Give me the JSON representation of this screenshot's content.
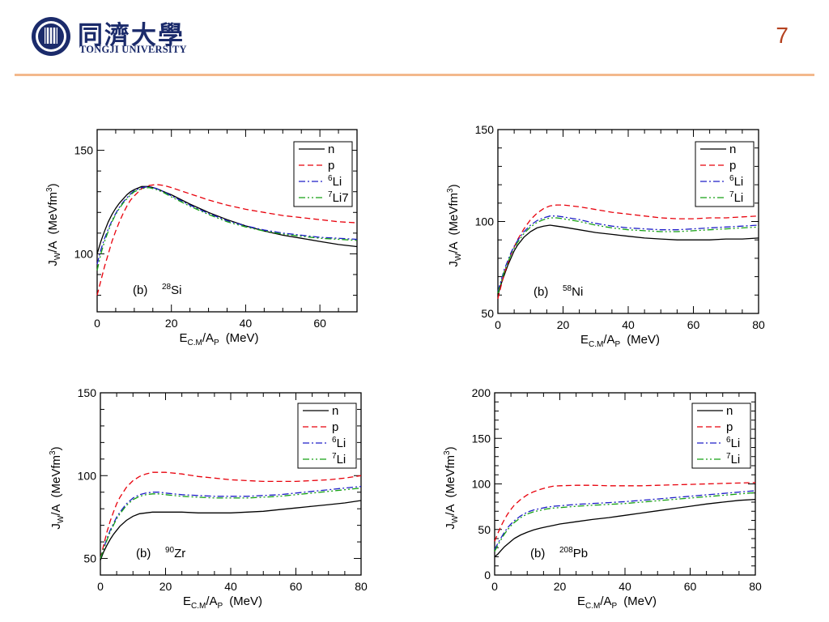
{
  "header": {
    "logo_cn": "同濟大學",
    "logo_en": "TONGJI UNIVERSITY",
    "page_number": "7"
  },
  "colors": {
    "n": "#000000",
    "p": "#e8000b",
    "li6": "#1f1fc8",
    "li7": "#16a014",
    "accent_rule": "#f3b98c",
    "brand": "#1b2b6b"
  },
  "chart_data": [
    {
      "type": "line",
      "panel_label": "(b)",
      "nucleus_mass": "28",
      "nucleus_symbol": "Si",
      "xlabel": {
        "main": "E",
        "sub1": "C.M",
        "mid": "/A",
        "sub2": "P",
        "unit": "(MeV)"
      },
      "ylabel": {
        "main": "J",
        "sub": "W",
        "mid": "/A",
        "unit": "(MeVfm",
        "sup": "3",
        "close": ")"
      },
      "xlim": [
        0,
        70
      ],
      "ylim": [
        72,
        160
      ],
      "xticks": [
        0,
        20,
        40,
        60
      ],
      "yticks": [
        100,
        150
      ],
      "legend": [
        "n",
        "p",
        "6Li",
        "7Li7"
      ],
      "series": [
        {
          "name": "n",
          "x": [
            0,
            1,
            2,
            3,
            4,
            5,
            6,
            7,
            8,
            9,
            10,
            12,
            14,
            16,
            18,
            20,
            25,
            30,
            35,
            40,
            45,
            50,
            55,
            60,
            65,
            70
          ],
          "y": [
            100,
            106,
            111,
            115.5,
            119,
            122,
            124.5,
            126.5,
            128.5,
            130,
            131,
            132.5,
            132.5,
            131.5,
            130,
            128.5,
            124,
            120,
            116.5,
            113.5,
            111,
            109,
            107.5,
            106,
            104.5,
            103.5
          ]
        },
        {
          "name": "p",
          "x": [
            0,
            1,
            2,
            3,
            4,
            5,
            6,
            7,
            8,
            9,
            10,
            12,
            14,
            16,
            18,
            20,
            25,
            30,
            35,
            40,
            45,
            50,
            55,
            60,
            65,
            70
          ],
          "y": [
            80,
            87,
            94,
            100,
            106,
            111,
            115.5,
            119.5,
            123,
            126,
            128,
            131.5,
            133,
            133.5,
            133,
            132,
            129,
            126,
            123.5,
            121.5,
            120,
            118.5,
            117.5,
            116.5,
            115.5,
            115
          ]
        },
        {
          "name": "6Li",
          "x": [
            0,
            1,
            2,
            3,
            4,
            5,
            6,
            7,
            8,
            9,
            10,
            12,
            14,
            16,
            18,
            20,
            25,
            30,
            35,
            40,
            45,
            50,
            55,
            60,
            65,
            70
          ],
          "y": [
            95,
            102,
            107.5,
            112,
            116,
            119.5,
            122.5,
            125,
            127,
            129,
            130.5,
            132,
            132.5,
            131.5,
            130,
            128,
            123.5,
            119.5,
            116,
            113.5,
            111.5,
            110,
            109,
            108,
            107.5,
            107
          ]
        },
        {
          "name": "7Li7",
          "x": [
            0,
            1,
            2,
            3,
            4,
            5,
            6,
            7,
            8,
            9,
            10,
            12,
            14,
            16,
            18,
            20,
            25,
            30,
            35,
            40,
            45,
            50,
            55,
            60,
            65,
            70
          ],
          "y": [
            92,
            100,
            106,
            111,
            115.5,
            119,
            122,
            124.5,
            126.5,
            128.5,
            130,
            131.5,
            132,
            131,
            129.5,
            127.5,
            123,
            119,
            115.5,
            113,
            111,
            109.5,
            108.5,
            107.5,
            107,
            106.5
          ]
        }
      ]
    },
    {
      "type": "line",
      "panel_label": "(b)",
      "nucleus_mass": "58",
      "nucleus_symbol": "Ni",
      "xlabel": {
        "main": "E",
        "sub1": "C.M",
        "mid": "/A",
        "sub2": "P",
        "unit": "(MeV)"
      },
      "ylabel": {
        "main": "J",
        "sub": "W",
        "mid": "/A",
        "unit": "(MeVfm",
        "sup": "3",
        "close": ")"
      },
      "xlim": [
        0,
        80
      ],
      "ylim": [
        50,
        150
      ],
      "xticks": [
        0,
        20,
        40,
        60,
        80
      ],
      "yticks": [
        50,
        100,
        150
      ],
      "legend": [
        "n",
        "p",
        "6Li",
        "7Li"
      ],
      "series": [
        {
          "name": "n",
          "x": [
            0,
            1,
            2,
            3,
            4,
            5,
            6,
            8,
            10,
            12,
            14,
            16,
            18,
            20,
            25,
            30,
            35,
            40,
            45,
            50,
            55,
            60,
            65,
            70,
            75,
            80
          ],
          "y": [
            60,
            66,
            71,
            76,
            80,
            84,
            87,
            91.5,
            94.5,
            96.5,
            97.5,
            98,
            97.5,
            97,
            95.5,
            94,
            93,
            92,
            91,
            90.5,
            90,
            90,
            90,
            90.5,
            90.5,
            91
          ]
        },
        {
          "name": "p",
          "x": [
            0,
            1,
            2,
            3,
            4,
            5,
            6,
            8,
            10,
            12,
            14,
            16,
            18,
            20,
            25,
            30,
            35,
            40,
            45,
            50,
            55,
            60,
            65,
            70,
            75,
            80
          ],
          "y": [
            58,
            65,
            72,
            77,
            82,
            86,
            90,
            96,
            101,
            104.5,
            107,
            108.5,
            109,
            109,
            108,
            106.5,
            105,
            104,
            103,
            102,
            101.5,
            101.5,
            102,
            102,
            102.5,
            103
          ]
        },
        {
          "name": "6Li",
          "x": [
            0,
            1,
            2,
            3,
            4,
            5,
            6,
            8,
            10,
            12,
            14,
            16,
            18,
            20,
            25,
            30,
            35,
            40,
            45,
            50,
            55,
            60,
            65,
            70,
            75,
            80
          ],
          "y": [
            62,
            68,
            74,
            78.5,
            83,
            86.5,
            89.5,
            94.5,
            98,
            100.5,
            102,
            103,
            103,
            102.5,
            101,
            99,
            97.5,
            96.5,
            96,
            95.5,
            95.5,
            96,
            96.5,
            97,
            97.5,
            98
          ]
        },
        {
          "name": "7Li",
          "x": [
            0,
            1,
            2,
            3,
            4,
            5,
            6,
            8,
            10,
            12,
            14,
            16,
            18,
            20,
            25,
            30,
            35,
            40,
            45,
            50,
            55,
            60,
            65,
            70,
            75,
            80
          ],
          "y": [
            61,
            67,
            73,
            77.5,
            82,
            85.5,
            88.5,
            93.5,
            97,
            99.5,
            101,
            102,
            102,
            101.5,
            100,
            98,
            96.5,
            95.5,
            95,
            94.5,
            94.5,
            95,
            95.5,
            96,
            96.5,
            97
          ]
        }
      ]
    },
    {
      "type": "line",
      "panel_label": "(b)",
      "nucleus_mass": "90",
      "nucleus_symbol": "Zr",
      "xlabel": {
        "main": "E",
        "sub1": "C.M",
        "mid": "/A",
        "sub2": "P",
        "unit": "(MeV)"
      },
      "ylabel": {
        "main": "J",
        "sub": "W",
        "mid": "/A",
        "unit": "(MeVfm",
        "sup": "3",
        "close": ")"
      },
      "xlim": [
        0,
        80
      ],
      "ylim": [
        40,
        150
      ],
      "xticks": [
        0,
        20,
        40,
        60,
        80
      ],
      "yticks": [
        50,
        100,
        150
      ],
      "legend": [
        "n",
        "p",
        "6Li",
        "7Li"
      ],
      "series": [
        {
          "name": "n",
          "x": [
            0,
            1,
            2,
            3,
            4,
            5,
            6,
            8,
            10,
            12,
            14,
            16,
            18,
            20,
            25,
            30,
            35,
            40,
            45,
            50,
            55,
            60,
            65,
            70,
            75,
            80
          ],
          "y": [
            49,
            54,
            58,
            61.5,
            64.5,
            67,
            69.5,
            73,
            75.5,
            77,
            77.5,
            78,
            78,
            78,
            78,
            77.5,
            77.5,
            77.5,
            78,
            78.5,
            79.5,
            80.5,
            81.5,
            82.5,
            83.5,
            85
          ]
        },
        {
          "name": "p",
          "x": [
            0,
            1,
            2,
            3,
            4,
            5,
            6,
            8,
            10,
            12,
            14,
            16,
            18,
            20,
            25,
            30,
            35,
            40,
            45,
            50,
            55,
            60,
            65,
            70,
            75,
            80
          ],
          "y": [
            50,
            58,
            66,
            72.5,
            78,
            83,
            87,
            93,
            97,
            99.5,
            101,
            102,
            102,
            102,
            101,
            99.5,
            98.5,
            97.5,
            97,
            96.5,
            96.5,
            96.5,
            97,
            97.5,
            98.5,
            100
          ]
        },
        {
          "name": "6Li",
          "x": [
            0,
            1,
            2,
            3,
            4,
            5,
            6,
            8,
            10,
            12,
            14,
            16,
            18,
            20,
            25,
            30,
            35,
            40,
            45,
            50,
            55,
            60,
            65,
            70,
            75,
            80
          ],
          "y": [
            50,
            56,
            62,
            67,
            71,
            75,
            78,
            83,
            86.5,
            88.5,
            89.5,
            90,
            90,
            89.5,
            88.5,
            88,
            87.5,
            87.5,
            87.5,
            88,
            88.5,
            89.5,
            90.5,
            91.5,
            92.5,
            93.5
          ]
        },
        {
          "name": "7Li",
          "x": [
            0,
            1,
            2,
            3,
            4,
            5,
            6,
            8,
            10,
            12,
            14,
            16,
            18,
            20,
            25,
            30,
            35,
            40,
            45,
            50,
            55,
            60,
            65,
            70,
            75,
            80
          ],
          "y": [
            50,
            55.5,
            61,
            66,
            70,
            74,
            77,
            82,
            85.5,
            87.5,
            88.5,
            89,
            89,
            88.5,
            87.5,
            87,
            86.5,
            86.5,
            86.5,
            87,
            87.5,
            88.5,
            89.5,
            90.5,
            91.5,
            92.5
          ]
        }
      ]
    },
    {
      "type": "line",
      "panel_label": "(b)",
      "nucleus_mass": "208",
      "nucleus_symbol": "Pb",
      "xlabel": {
        "main": "E",
        "sub1": "C.M",
        "mid": "/A",
        "sub2": "P",
        "unit": "(MeV)"
      },
      "ylabel": {
        "main": "J",
        "sub": "W",
        "mid": "/A",
        "unit": "(MeVfm",
        "sup": "3",
        "close": ")"
      },
      "xlim": [
        0,
        80
      ],
      "ylim": [
        0,
        200
      ],
      "xticks": [
        0,
        20,
        40,
        60,
        80
      ],
      "yticks": [
        0,
        50,
        100,
        150,
        200
      ],
      "legend": [
        "n",
        "p",
        "6Li",
        "7Li"
      ],
      "series": [
        {
          "name": "n",
          "x": [
            0,
            1,
            2,
            3,
            4,
            5,
            6,
            8,
            10,
            12,
            14,
            16,
            18,
            20,
            25,
            30,
            35,
            40,
            45,
            50,
            55,
            60,
            65,
            70,
            75,
            80
          ],
          "y": [
            20,
            23,
            27,
            31,
            34,
            37,
            40,
            44,
            47,
            49.5,
            51.5,
            53,
            54.5,
            56,
            58.5,
            61,
            63,
            65.5,
            68,
            70.5,
            73,
            75.5,
            78,
            80,
            82,
            83
          ]
        },
        {
          "name": "p",
          "x": [
            0,
            1,
            2,
            3,
            4,
            5,
            6,
            8,
            10,
            12,
            14,
            16,
            18,
            20,
            25,
            30,
            35,
            40,
            45,
            50,
            55,
            60,
            65,
            70,
            75,
            80
          ],
          "y": [
            37,
            46,
            54,
            61,
            67,
            72,
            76.5,
            83,
            88,
            91.5,
            94,
            96,
            97.5,
            98,
            98.5,
            98.5,
            98,
            98,
            98,
            98.5,
            99,
            99.5,
            100,
            100.5,
            101,
            101.5
          ]
        },
        {
          "name": "6Li",
          "x": [
            0,
            1,
            2,
            3,
            4,
            5,
            6,
            8,
            10,
            12,
            14,
            16,
            18,
            20,
            25,
            30,
            35,
            40,
            45,
            50,
            55,
            60,
            65,
            70,
            75,
            80
          ],
          "y": [
            28,
            35,
            41,
            47,
            52,
            56,
            59.5,
            65,
            69,
            71.5,
            73,
            74.5,
            75.5,
            76,
            77.5,
            78.5,
            79.5,
            80.5,
            82,
            83.5,
            85,
            86.5,
            88,
            89.5,
            91,
            92.5
          ]
        },
        {
          "name": "7Li",
          "x": [
            0,
            1,
            2,
            3,
            4,
            5,
            6,
            8,
            10,
            12,
            14,
            16,
            18,
            20,
            25,
            30,
            35,
            40,
            45,
            50,
            55,
            60,
            65,
            70,
            75,
            80
          ],
          "y": [
            26,
            33,
            39,
            45,
            50,
            54,
            57.5,
            63,
            67,
            69.5,
            71,
            72.5,
            73.5,
            74,
            75.5,
            76.5,
            77.5,
            78.5,
            80,
            81.5,
            83,
            84.5,
            86,
            87.5,
            89,
            90.5
          ]
        }
      ]
    }
  ]
}
